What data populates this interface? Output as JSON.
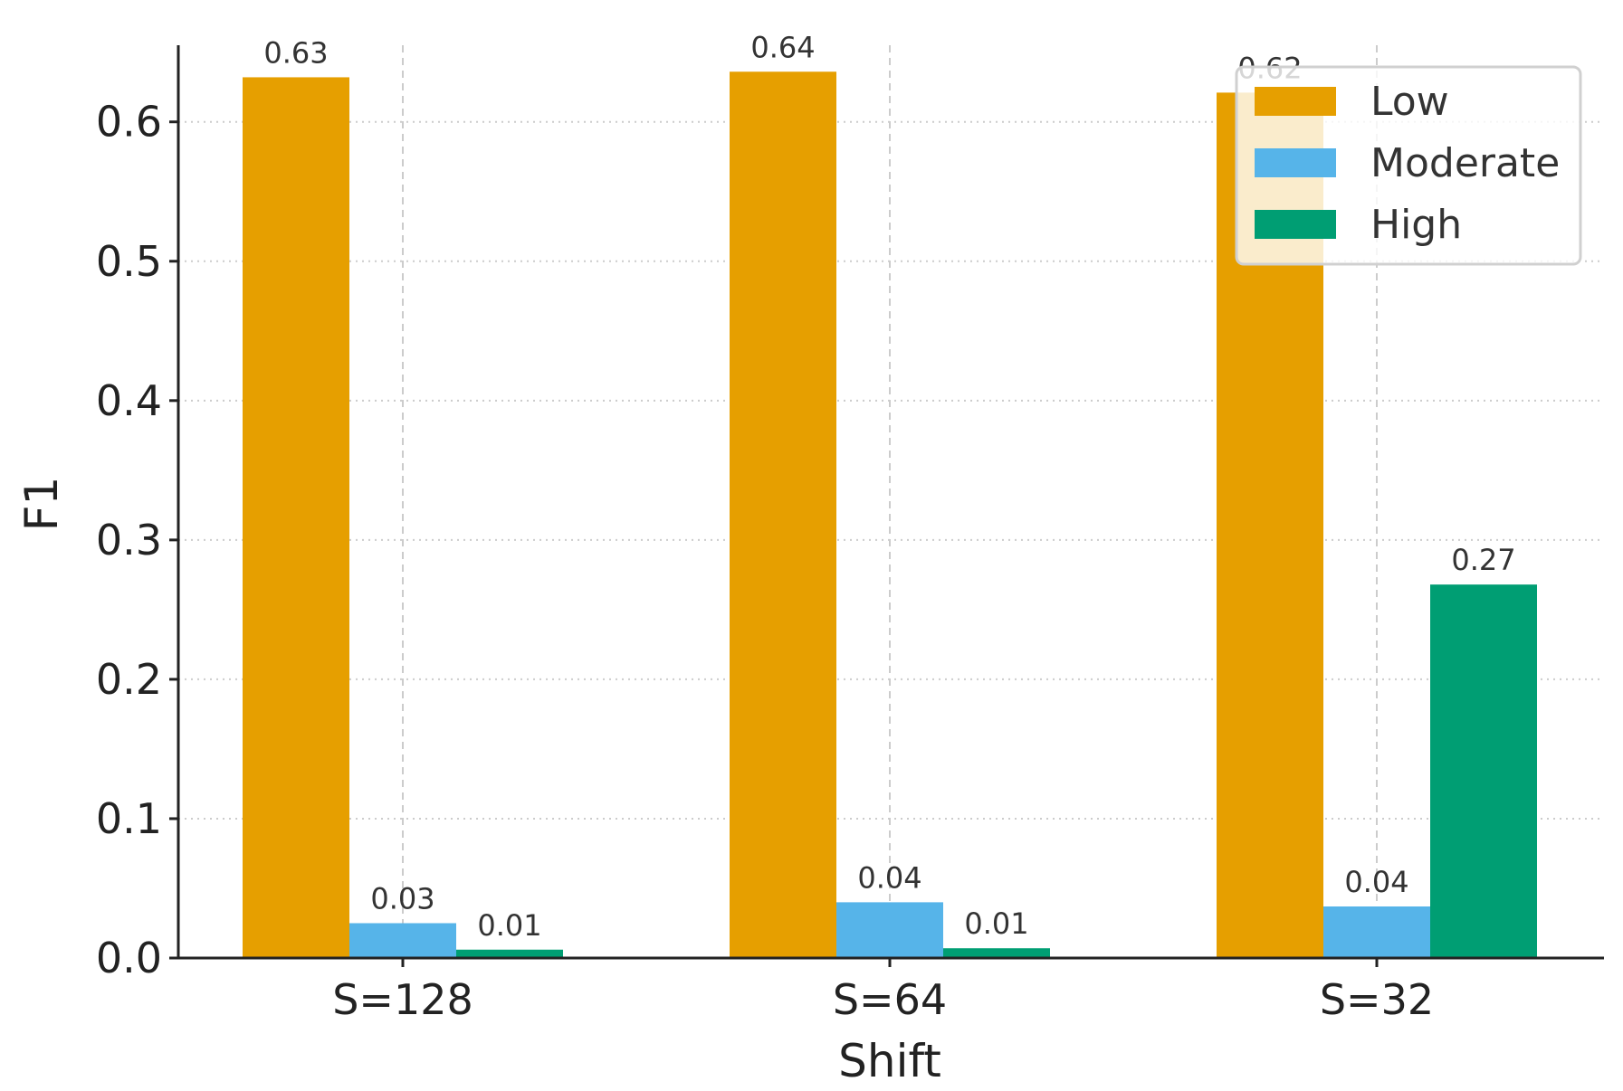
{
  "chart_data": {
    "type": "bar",
    "xlabel": "Shift",
    "ylabel": "F1",
    "categories": [
      "S=128",
      "S=64",
      "S=32"
    ],
    "ylim": [
      0,
      0.655
    ],
    "yticks": [
      0.0,
      0.1,
      0.2,
      0.3,
      0.4,
      0.5,
      0.6
    ],
    "ytick_labels": [
      "0.0",
      "0.1",
      "0.2",
      "0.3",
      "0.4",
      "0.5",
      "0.6"
    ],
    "grid": true,
    "legend_position": "top-right",
    "series": [
      {
        "name": "Low",
        "color": "#E69F00",
        "values": [
          0.632,
          0.636,
          0.621
        ],
        "labels": [
          "0.63",
          "0.64",
          "0.62"
        ]
      },
      {
        "name": "Moderate",
        "color": "#56B4E9",
        "values": [
          0.025,
          0.04,
          0.037
        ],
        "labels": [
          "0.03",
          "0.04",
          "0.04"
        ]
      },
      {
        "name": "High",
        "color": "#009E73",
        "values": [
          0.006,
          0.007,
          0.268
        ],
        "labels": [
          "0.01",
          "0.01",
          "0.27"
        ]
      }
    ]
  }
}
